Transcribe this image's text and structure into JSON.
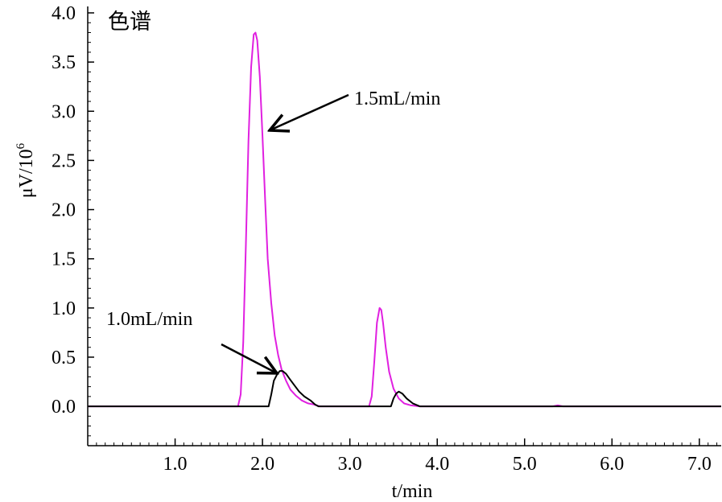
{
  "chart_data": {
    "type": "line",
    "panel_label": "色谱",
    "xlabel": "t/min",
    "ylabel": "μV/10",
    "ylabel_exponent": "6",
    "xlim": [
      0.0,
      7.25
    ],
    "ylim": [
      -0.4,
      4.0
    ],
    "x_ticks": [
      {
        "value": 1.0,
        "label": "1.0"
      },
      {
        "value": 2.0,
        "label": "2.0"
      },
      {
        "value": 3.0,
        "label": "3.0"
      },
      {
        "value": 4.0,
        "label": "4.0"
      },
      {
        "value": 5.0,
        "label": "5.0"
      },
      {
        "value": 6.0,
        "label": "6.0"
      },
      {
        "value": 7.0,
        "label": "7.0"
      }
    ],
    "y_ticks": [
      {
        "value": 4.0,
        "label": "4.0"
      },
      {
        "value": 3.5,
        "label": "3.5"
      },
      {
        "value": 3.0,
        "label": "3.0"
      },
      {
        "value": 2.5,
        "label": "2.5"
      },
      {
        "value": 2.0,
        "label": "2.0"
      },
      {
        "value": 1.5,
        "label": "1.5"
      },
      {
        "value": 1.0,
        "label": "1.0"
      },
      {
        "value": 0.5,
        "label": "0.5"
      },
      {
        "value": 0.0,
        "label": "0.0"
      }
    ],
    "grid": false,
    "series": [
      {
        "color": "#e020e0",
        "x": [
          0.0,
          1.72,
          1.75,
          1.78,
          1.81,
          1.84,
          1.87,
          1.9,
          1.92,
          1.94,
          1.97,
          2.0,
          2.03,
          2.06,
          2.1,
          2.14,
          2.18,
          2.22,
          2.27,
          2.32,
          2.38,
          2.45,
          2.52,
          2.58,
          2.62,
          2.66,
          3.22,
          3.25,
          3.28,
          3.31,
          3.34,
          3.36,
          3.38,
          3.41,
          3.45,
          3.5,
          3.56,
          3.62,
          3.7,
          3.8,
          5.32,
          5.38,
          5.44,
          5.5,
          7.25
        ],
        "y": [
          0.0,
          0.0,
          0.12,
          0.65,
          1.65,
          2.7,
          3.45,
          3.78,
          3.8,
          3.72,
          3.35,
          2.75,
          2.1,
          1.5,
          1.05,
          0.72,
          0.52,
          0.37,
          0.26,
          0.17,
          0.11,
          0.06,
          0.03,
          0.02,
          0.01,
          0.0,
          0.0,
          0.1,
          0.45,
          0.85,
          1.0,
          0.98,
          0.85,
          0.6,
          0.35,
          0.18,
          0.08,
          0.03,
          0.01,
          0.0,
          0.0,
          0.01,
          0.0,
          0.0,
          0.0
        ]
      },
      {
        "color": "#000000",
        "x": [
          0.0,
          2.07,
          2.1,
          2.13,
          2.17,
          2.2,
          2.23,
          2.27,
          2.31,
          2.36,
          2.42,
          2.48,
          2.55,
          2.6,
          2.64,
          3.47,
          3.5,
          3.53,
          3.56,
          3.6,
          3.65,
          3.72,
          3.8,
          7.25
        ],
        "y": [
          0.0,
          0.0,
          0.12,
          0.26,
          0.33,
          0.36,
          0.36,
          0.33,
          0.28,
          0.22,
          0.15,
          0.1,
          0.06,
          0.02,
          0.0,
          0.0,
          0.08,
          0.13,
          0.15,
          0.13,
          0.08,
          0.03,
          0.0,
          0.0
        ]
      }
    ],
    "annotations": [
      {
        "text": "1.5mL/min",
        "arrow_to": [
          2.0,
          2.8
        ]
      },
      {
        "text": "1.0mL/min",
        "arrow_to": [
          2.1,
          0.32
        ]
      }
    ]
  }
}
